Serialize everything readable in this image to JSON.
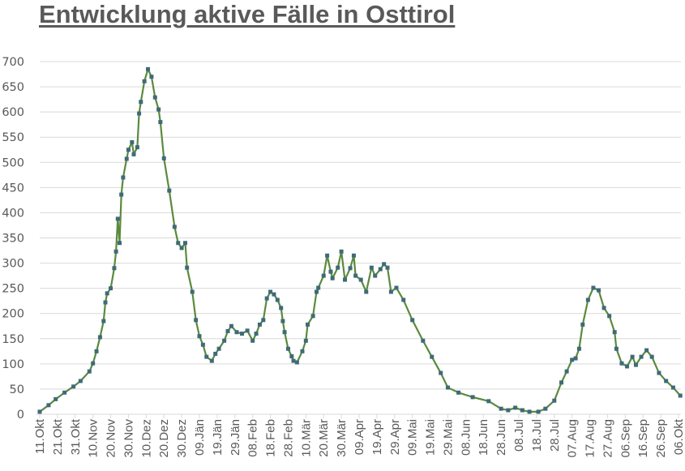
{
  "chart_data": {
    "type": "line",
    "title": "Entwicklung aktive Fälle in Osttirol",
    "xlabel": "",
    "ylabel": "",
    "ylim": [
      0,
      700
    ],
    "yticks": [
      0,
      50,
      100,
      150,
      200,
      250,
      300,
      350,
      400,
      450,
      500,
      550,
      600,
      650,
      700
    ],
    "grid": true,
    "legend": "none",
    "x_tick_labels": [
      "11.Okt",
      "21.Okt",
      "31.Okt",
      "10.Nov",
      "20.Nov",
      "30.Nov",
      "10.Dez",
      "20.Dez",
      "30.Dez",
      "09.Jän",
      "19.Jän",
      "29.Jän",
      "08.Feb",
      "18.Feb",
      "28.Feb",
      "10.Mär",
      "20.Mär",
      "30.Mär",
      "09.Apr",
      "19.Apr",
      "29.Apr",
      "09.Mai",
      "19.Mai",
      "29.Mai",
      "08.Jun",
      "18.Jun",
      "28.Jun",
      "08.Jul",
      "18.Jul",
      "28.Jul",
      "07.Aug",
      "17.Aug",
      "27.Aug",
      "06.Sep",
      "16.Sep",
      "26.Sep",
      "06.Okt"
    ],
    "x_unit": "days since 11.Okt",
    "series": [
      {
        "name": "aktive Fälle",
        "line_color": "#5b8a3c",
        "marker_color": "#3f6a78",
        "x": [
          0,
          5,
          9,
          14,
          19,
          23,
          28,
          30,
          32,
          34,
          36,
          37,
          38,
          40,
          42,
          43,
          44,
          45,
          46,
          47,
          49,
          50,
          52,
          53,
          55,
          56,
          57,
          59,
          61,
          63,
          65,
          67,
          68,
          70,
          73,
          76,
          78,
          80,
          82,
          83,
          86,
          88,
          90,
          92,
          94,
          97,
          99,
          101,
          104,
          106,
          108,
          111,
          114,
          117,
          120,
          122,
          124,
          126,
          128,
          130,
          132,
          134,
          136,
          137,
          138,
          140,
          142,
          143,
          145,
          148,
          150,
          151,
          154,
          156,
          157,
          160,
          162,
          164,
          165,
          168,
          170,
          172,
          175,
          177,
          178,
          181,
          184,
          187,
          189,
          192,
          194,
          196,
          198,
          201,
          205,
          210,
          216,
          221,
          226,
          230,
          236,
          244,
          253,
          260,
          264,
          268,
          272,
          276,
          281,
          285,
          290,
          294,
          297,
          300,
          302,
          304,
          306,
          309,
          312,
          315,
          318,
          321,
          324,
          325,
          328,
          331,
          334,
          336,
          339,
          342,
          345,
          349,
          353,
          357,
          361
        ],
        "values": [
          5,
          18,
          30,
          43,
          55,
          66,
          85,
          101,
          125,
          153,
          185,
          222,
          240,
          250,
          290,
          323,
          388,
          340,
          436,
          470,
          507,
          525,
          540,
          516,
          530,
          597,
          620,
          661,
          685,
          670,
          629,
          605,
          580,
          508,
          444,
          372,
          340,
          330,
          340,
          291,
          243,
          187,
          155,
          138,
          114,
          106,
          120,
          130,
          146,
          165,
          175,
          163,
          160,
          166,
          146,
          160,
          178,
          187,
          230,
          243,
          238,
          227,
          211,
          185,
          163,
          130,
          115,
          106,
          103,
          125,
          146,
          178,
          195,
          243,
          251,
          275,
          315,
          283,
          270,
          291,
          323,
          267,
          290,
          315,
          275,
          267,
          243,
          291,
          275,
          288,
          298,
          291,
          243,
          251,
          227,
          187,
          146,
          114,
          82,
          53,
          43,
          34,
          26,
          11,
          8,
          13,
          8,
          5,
          5,
          11,
          27,
          63,
          85,
          108,
          111,
          130,
          178,
          227,
          251,
          246,
          211,
          195,
          163,
          130,
          101,
          95,
          114,
          98,
          114,
          127,
          114,
          82,
          66,
          53,
          37
        ]
      }
    ]
  }
}
